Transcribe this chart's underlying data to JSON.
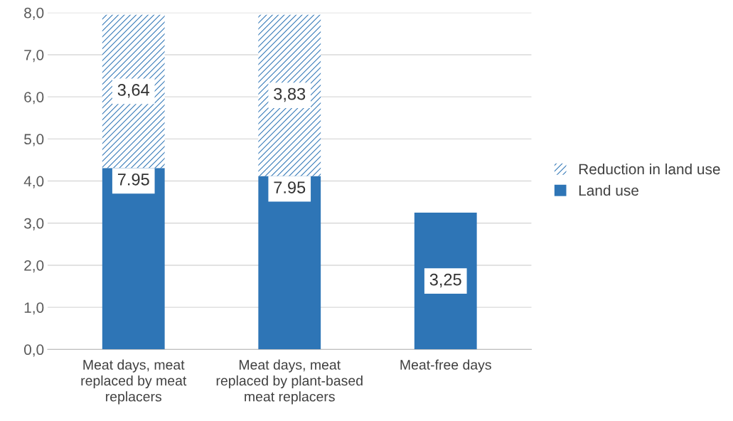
{
  "chart_data": {
    "type": "bar",
    "stacked": true,
    "categories": [
      "Meat days, meat replaced by meat replacers",
      "Meat days, meat replaced by plant-based meat replacers",
      "Meat-free days"
    ],
    "series": [
      {
        "name": "Land use",
        "color": "#2e75b6",
        "values": [
          4.31,
          4.12,
          3.25
        ],
        "value_labels": [
          null,
          null,
          "3,25"
        ]
      },
      {
        "name": "Reduction in land use",
        "color": "#2e75b6",
        "values": [
          3.64,
          3.83,
          null
        ],
        "value_labels": [
          "3,64",
          "3,83",
          null
        ]
      }
    ],
    "annotations": [
      "7.95",
      "7.95"
    ],
    "ylim": [
      0,
      8
    ],
    "yticks": [
      {
        "value": 0,
        "label": "0,0"
      },
      {
        "value": 1,
        "label": "1,0"
      },
      {
        "value": 2,
        "label": "2,0"
      },
      {
        "value": 3,
        "label": "3,0"
      },
      {
        "value": 4,
        "label": "4,0"
      },
      {
        "value": 5,
        "label": "5,0"
      },
      {
        "value": 6,
        "label": "6,0"
      },
      {
        "value": 7,
        "label": "7,0"
      },
      {
        "value": 8,
        "label": "8,0"
      }
    ],
    "grid": "y",
    "legend": "right"
  }
}
